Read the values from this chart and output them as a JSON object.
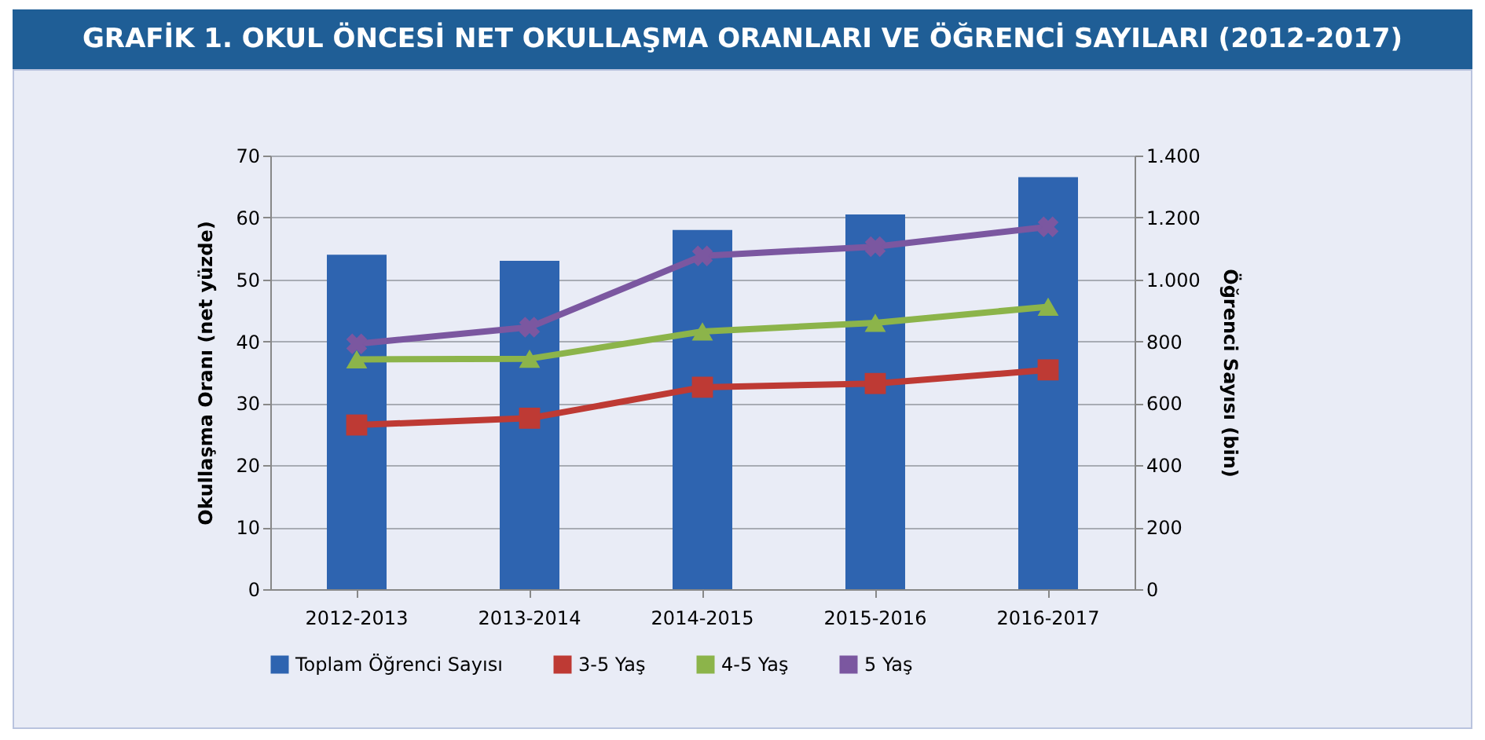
{
  "chart_data": {
    "type": "bar",
    "title": "GRAFİK 1. OKUL ÖNCESİ NET OKULLAŞMA ORANLARI VE ÖĞRENCİ SAYILARI (2012-2017)",
    "ylabel": "Okullaşma Oranı  (net  yüzde)",
    "y2label": "Öğrenci Sayısı (bin)",
    "categories": [
      "2012-2013",
      "2013-2014",
      "2014-2015",
      "2015-2016",
      "2016-2017"
    ],
    "series": [
      {
        "name": "Toplam Öğrenci Sayısı",
        "axis": "y2",
        "color": "#2e64b0",
        "values": [
          1080,
          1060,
          1160,
          1210,
          1330
        ]
      },
      {
        "name": "3-5 Yaş",
        "type": "line",
        "marker": "square",
        "color": "#be3a34",
        "values": [
          26.5,
          27.6,
          32.6,
          33.2,
          35.4
        ]
      },
      {
        "name": "4-5 Yaş",
        "type": "line",
        "marker": "triangle",
        "color": "#8cb44a",
        "values": [
          37.1,
          37.2,
          41.6,
          43.0,
          45.6
        ]
      },
      {
        "name": "5 Yaş",
        "type": "line",
        "marker": "cross",
        "color": "#7b57a0",
        "values": [
          39.6,
          42.3,
          53.8,
          55.3,
          58.5
        ]
      }
    ],
    "ylim": [
      0,
      70
    ],
    "yticks": [
      0,
      10,
      20,
      30,
      40,
      50,
      60,
      70
    ],
    "y2lim": [
      0,
      1400
    ],
    "y2ticks": [
      0,
      200,
      400,
      600,
      800,
      {
        "value": 1000,
        "label": "1.000"
      },
      {
        "value": 1200,
        "label": "1.200"
      },
      {
        "value": 1400,
        "label": "1.400"
      }
    ],
    "grid": "y",
    "legend": "bottom"
  }
}
